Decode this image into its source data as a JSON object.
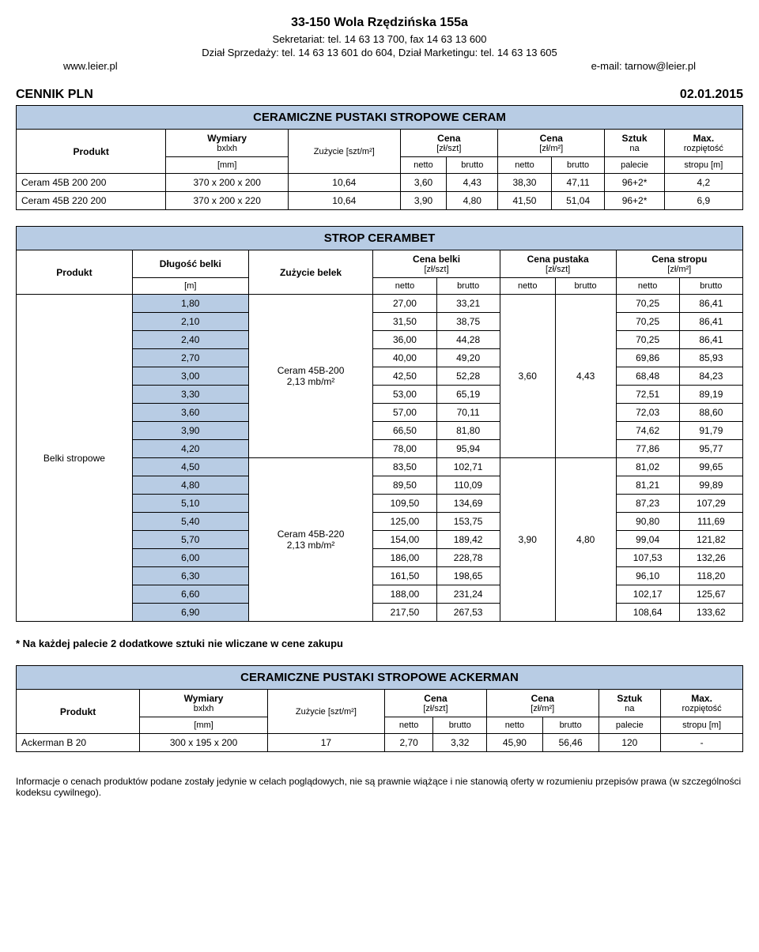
{
  "header": {
    "address": "33-150 Wola Rzędzińska 155a",
    "line1": "Sekretariat: tel. 14 63 13 700, fax 14 63 13 600",
    "line2": "Dział Sprzedaży: tel. 14 63 13 601 do 604, Dział Marketingu: tel. 14 63 13 605",
    "www": "www.leier.pl",
    "email": "e-mail: tarnow@leier.pl"
  },
  "cennik": {
    "title": "CENNIK PLN",
    "date": "02.01.2015"
  },
  "tab1": {
    "banner": "CERAMICZNE PUSTAKI STROPOWE CERAM",
    "h_produkt": "Produkt",
    "h_wymiary": "Wymiary",
    "h_bxlxh": "bxlxh",
    "h_zuzycie": "Zużycie [szt/m²]",
    "h_cena_szt_top": "Cena",
    "h_cena_szt_sub": "[zł/szt]",
    "h_cena_m2_top": "Cena",
    "h_cena_m2_sub": "[zł/m²]",
    "h_sztuk_top": "Sztuk",
    "h_sztuk_sub": "na",
    "h_max_top": "Max.",
    "h_max_sub": "rozpiętość",
    "h_mm": "[mm]",
    "h_netto": "netto",
    "h_brutto": "brutto",
    "h_palecie": "palecie",
    "h_stropu": "stropu [m]",
    "rows": [
      {
        "p": "Ceram 45B 200 200",
        "w": "370 x 200 x 200",
        "z": "10,64",
        "cn": "3,60",
        "cb": "4,43",
        "mn": "38,30",
        "mb": "47,11",
        "pa": "96+2*",
        "st": "4,2"
      },
      {
        "p": "Ceram 45B 220 200",
        "w": "370 x 200 x 220",
        "z": "10,64",
        "cn": "3,90",
        "cb": "4,80",
        "mn": "41,50",
        "mb": "51,04",
        "pa": "96+2*",
        "st": "6,9"
      }
    ]
  },
  "tab2": {
    "banner": "STROP CERAMBET",
    "h_produkt": "Produkt",
    "h_dlugosc": "Długość belki",
    "h_zuzycie": "Zużycie belek",
    "h_belki_top": "Cena belki",
    "h_belki_sub": "[zł/szt]",
    "h_pustaka_top": "Cena pustaka",
    "h_pustaka_sub": "[zł/szt]",
    "h_stropu_top": "Cena stropu",
    "h_stropu_sub": "[zł/m²]",
    "h_m": "[m]",
    "h_netto": "netto",
    "h_brutto": "brutto",
    "product": "Belki stropowe",
    "zuz1": "Ceram 45B-200\n2,13 mb/m²",
    "zuz2": "Ceram 45B-220\n2,13 mb/m²",
    "pust_n": "3,60",
    "pust_b": "4,43",
    "pust2_n": "3,90",
    "pust2_b": "4,80",
    "rows": [
      {
        "d": "1,80",
        "bn": "27,00",
        "bb": "33,21",
        "sn": "70,25",
        "sb": "86,41"
      },
      {
        "d": "2,10",
        "bn": "31,50",
        "bb": "38,75",
        "sn": "70,25",
        "sb": "86,41"
      },
      {
        "d": "2,40",
        "bn": "36,00",
        "bb": "44,28",
        "sn": "70,25",
        "sb": "86,41"
      },
      {
        "d": "2,70",
        "bn": "40,00",
        "bb": "49,20",
        "sn": "69,86",
        "sb": "85,93"
      },
      {
        "d": "3,00",
        "bn": "42,50",
        "bb": "52,28",
        "sn": "68,48",
        "sb": "84,23"
      },
      {
        "d": "3,30",
        "bn": "53,00",
        "bb": "65,19",
        "sn": "72,51",
        "sb": "89,19"
      },
      {
        "d": "3,60",
        "bn": "57,00",
        "bb": "70,11",
        "sn": "72,03",
        "sb": "88,60"
      },
      {
        "d": "3,90",
        "bn": "66,50",
        "bb": "81,80",
        "sn": "74,62",
        "sb": "91,79"
      },
      {
        "d": "4,20",
        "bn": "78,00",
        "bb": "95,94",
        "sn": "77,86",
        "sb": "95,77"
      },
      {
        "d": "4,50",
        "bn": "83,50",
        "bb": "102,71",
        "sn": "81,02",
        "sb": "99,65"
      },
      {
        "d": "4,80",
        "bn": "89,50",
        "bb": "110,09",
        "sn": "81,21",
        "sb": "99,89"
      },
      {
        "d": "5,10",
        "bn": "109,50",
        "bb": "134,69",
        "sn": "87,23",
        "sb": "107,29"
      },
      {
        "d": "5,40",
        "bn": "125,00",
        "bb": "153,75",
        "sn": "90,80",
        "sb": "111,69"
      },
      {
        "d": "5,70",
        "bn": "154,00",
        "bb": "189,42",
        "sn": "99,04",
        "sb": "121,82"
      },
      {
        "d": "6,00",
        "bn": "186,00",
        "bb": "228,78",
        "sn": "107,53",
        "sb": "132,26"
      },
      {
        "d": "6,30",
        "bn": "161,50",
        "bb": "198,65",
        "sn": "96,10",
        "sb": "118,20"
      },
      {
        "d": "6,60",
        "bn": "188,00",
        "bb": "231,24",
        "sn": "102,17",
        "sb": "125,67"
      },
      {
        "d": "6,90",
        "bn": "217,50",
        "bb": "267,53",
        "sn": "108,64",
        "sb": "133,62"
      }
    ]
  },
  "footnote": "* Na każdej palecie 2 dodatkowe sztuki nie wliczane w cene zakupu",
  "tab3": {
    "banner": "CERAMICZNE PUSTAKI STROPOWE ACKERMAN",
    "rows": [
      {
        "p": "Ackerman B 20",
        "w": "300 x 195 x 200",
        "z": "17",
        "cn": "2,70",
        "cb": "3,32",
        "mn": "45,90",
        "mb": "56,46",
        "pa": "120",
        "st": "-"
      }
    ]
  },
  "disclaimer": "Informacje o cenach produktów podane zostały jedynie w celach poglądowych, nie są prawnie wiążące i nie stanowią oferty w rozumieniu przepisów prawa (w szczególności kodeksu cywilnego)."
}
